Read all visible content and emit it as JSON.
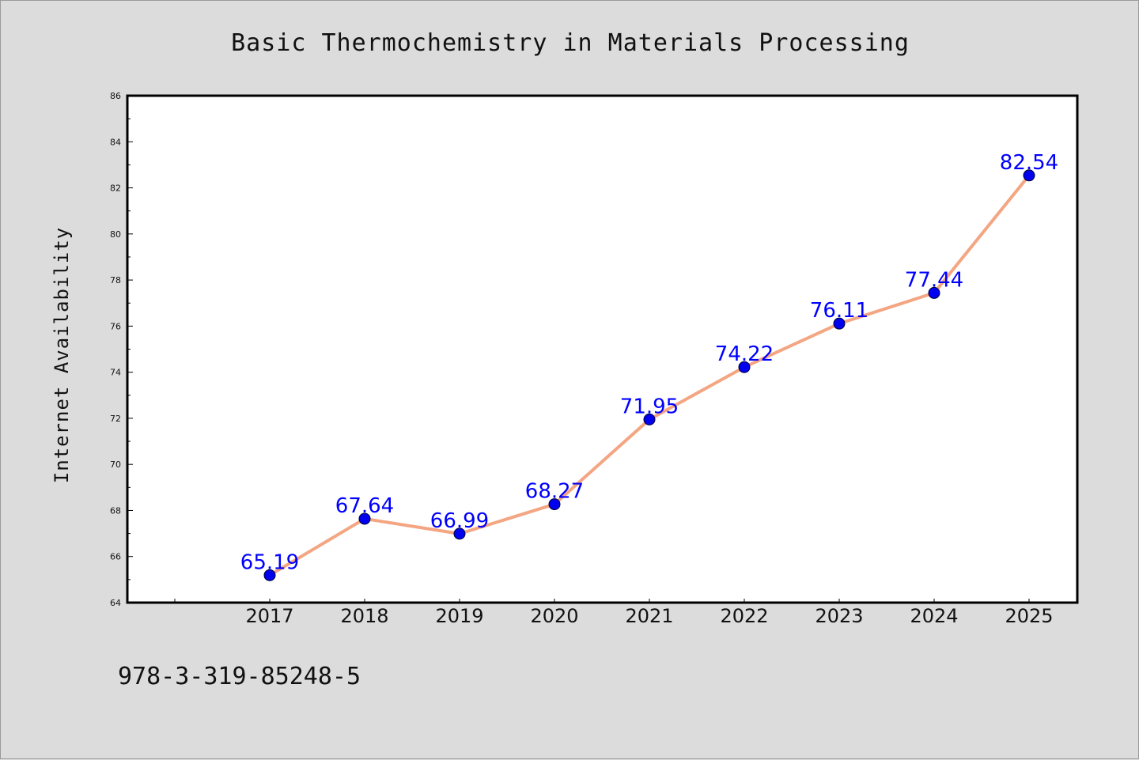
{
  "chart_data": {
    "type": "line",
    "title": "Basic Thermochemistry in Materials Processing",
    "xlabel": "",
    "ylabel": "Internet Availability",
    "categories": [
      "2017",
      "2018",
      "2019",
      "2020",
      "2021",
      "2022",
      "2023",
      "2024",
      "2025"
    ],
    "series": [
      {
        "values": [
          65.19,
          67.64,
          66.99,
          68.27,
          71.95,
          74.22,
          76.11,
          77.44,
          82.54
        ],
        "data_labels": [
          "65.19",
          "67.64",
          "66.99",
          "68.27",
          "71.95",
          "74.22",
          "76.11",
          "77.44",
          "82.54"
        ],
        "line_color": "#f4a582",
        "marker_color": "#0000ee"
      }
    ],
    "ylim": [
      64,
      86
    ],
    "yticks": [
      "64",
      "66",
      "68",
      "70",
      "72",
      "74",
      "76",
      "78",
      "80",
      "82",
      "84",
      "86"
    ],
    "grid": false,
    "legend": "none"
  },
  "footer": {
    "isbn": "978-3-319-85248-5"
  },
  "colors": {
    "background": "#dcdcdc",
    "plot_background": "#ffffff",
    "label_color": "#0000ff"
  }
}
